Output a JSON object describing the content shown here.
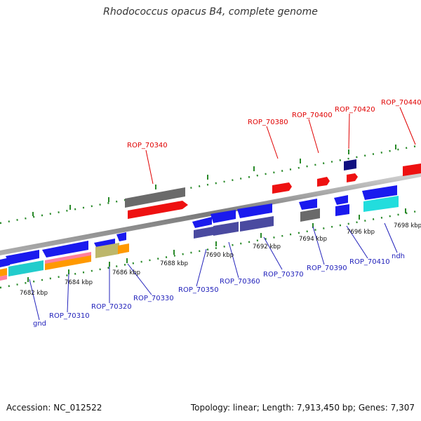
{
  "header": {
    "title": "Rhodococcus opacus B4, complete genome"
  },
  "footer": {
    "accession": "Accession: NC_012522",
    "stats": "Topology: linear; Length: 7,913,450 bp; Genes: 7,307"
  },
  "scale_labels": [
    "7682 kbp",
    "7684 kbp",
    "7686 kbp",
    "7688 kbp",
    "7690 kbp",
    "7692 kbp",
    "7694 kbp",
    "7696 kbp",
    "7698 kbp"
  ],
  "top_labels": [
    "ROP_70340",
    "ROP_70380",
    "ROP_70400",
    "ROP_70420",
    "ROP_70440"
  ],
  "bottom_labels": [
    "gnd",
    "ROP_70310",
    "ROP_70320",
    "ROP_70330",
    "ROP_70350",
    "ROP_70360",
    "ROP_70370",
    "ROP_70390",
    "ROP_70410",
    "ndh"
  ],
  "colors": {
    "axis": "#8c8c8c",
    "ticks": "#2a8a2a",
    "gene_blue": "#1a1aee",
    "gene_red": "#ee1111",
    "gene_gray": "#6a6a6a",
    "gene_navy": "#101080",
    "gene_slate": "#4a4aa0",
    "gene_cyan": "#22dddd",
    "gene_khaki": "#bdb76b",
    "gene_orange": "#ff9900",
    "gene_pink": "#ff7f9f"
  }
}
